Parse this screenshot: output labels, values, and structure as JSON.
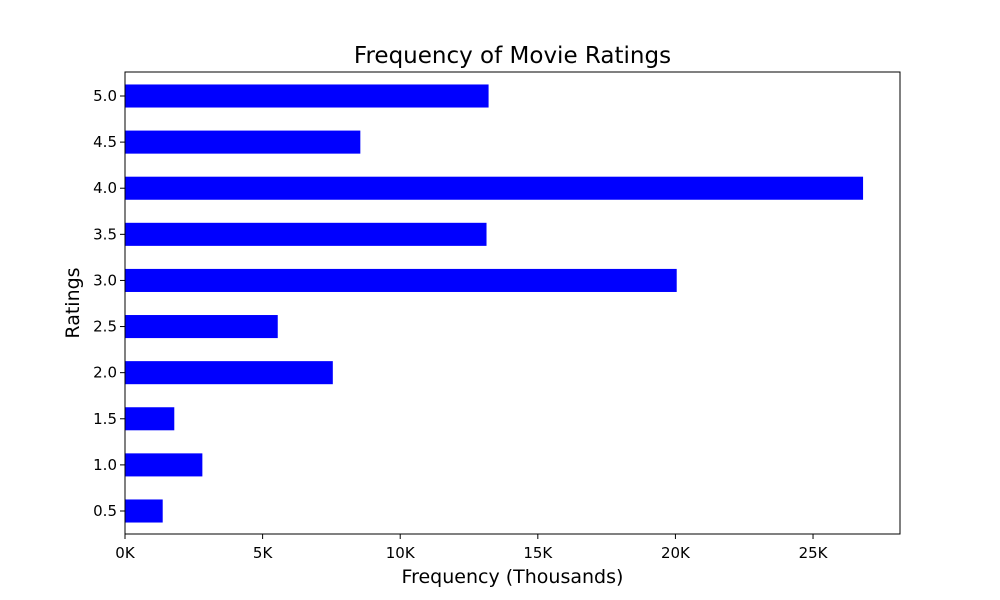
{
  "chart_data": {
    "type": "bar",
    "orientation": "horizontal",
    "title": "Frequency of Movie Ratings",
    "xlabel": "Frequency (Thousands)",
    "ylabel": "Ratings",
    "categories": [
      "0.5",
      "1.0",
      "1.5",
      "2.0",
      "2.5",
      "3.0",
      "3.5",
      "4.0",
      "4.5",
      "5.0"
    ],
    "values": [
      1370,
      2811,
      1791,
      7551,
      5550,
      20047,
      13136,
      26818,
      8551,
      13211
    ],
    "xlim": [
      0,
      28160
    ],
    "xticks": [
      0,
      5000,
      10000,
      15000,
      20000,
      25000
    ],
    "xtick_labels": [
      "0K",
      "5K",
      "10K",
      "15K",
      "20K",
      "25K"
    ],
    "bar_color": "#0000ff",
    "grid": false,
    "legend": "none"
  }
}
